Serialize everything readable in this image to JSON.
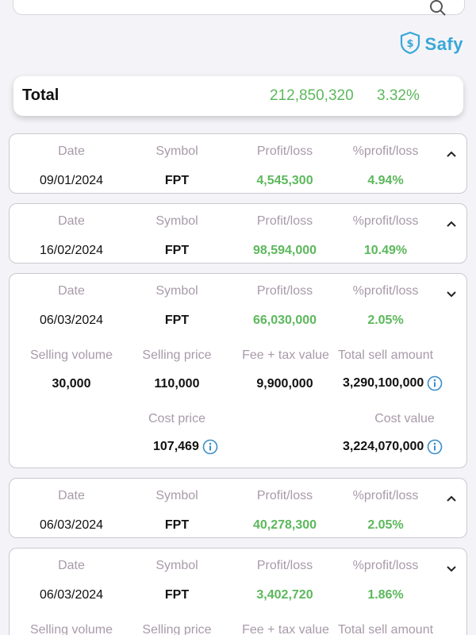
{
  "search": {
    "icon": "search-icon"
  },
  "brand": {
    "name": "Safy",
    "color": "#38a7d8"
  },
  "total": {
    "label": "Total",
    "value": "212,850,320",
    "percent": "3.32%"
  },
  "headers": {
    "date": "Date",
    "symbol": "Symbol",
    "profit_loss": "Profit/loss",
    "percent_profit_loss": "%profit/loss",
    "selling_volume": "Selling volume",
    "selling_price": "Selling price",
    "fee_tax_value": "Fee + tax value",
    "total_sell_amount": "Total sell amount",
    "cost_price": "Cost price",
    "cost_value": "Cost value"
  },
  "colors": {
    "profit": "#5cb85c",
    "header": "#a89aa8",
    "info": "#3a8fc8"
  },
  "cards": [
    {
      "date": "09/01/2024",
      "symbol": "FPT",
      "profit_loss": "4,545,300",
      "percent": "4.94%",
      "expanded": false
    },
    {
      "date": "16/02/2024",
      "symbol": "FPT",
      "profit_loss": "98,594,000",
      "percent": "10.49%",
      "expanded": false
    },
    {
      "date": "06/03/2024",
      "symbol": "FPT",
      "profit_loss": "66,030,000",
      "percent": "2.05%",
      "expanded": true,
      "selling_volume": "30,000",
      "selling_price": "110,000",
      "fee_tax_value": "9,900,000",
      "total_sell_amount": "3,290,100,000",
      "cost_price": "107,469",
      "cost_value": "3,224,070,000"
    },
    {
      "date": "06/03/2024",
      "symbol": "FPT",
      "profit_loss": "40,278,300",
      "percent": "2.05%",
      "expanded": false
    },
    {
      "date": "06/03/2024",
      "symbol": "FPT",
      "profit_loss": "3,402,720",
      "percent": "1.86%",
      "expanded": true
    }
  ]
}
